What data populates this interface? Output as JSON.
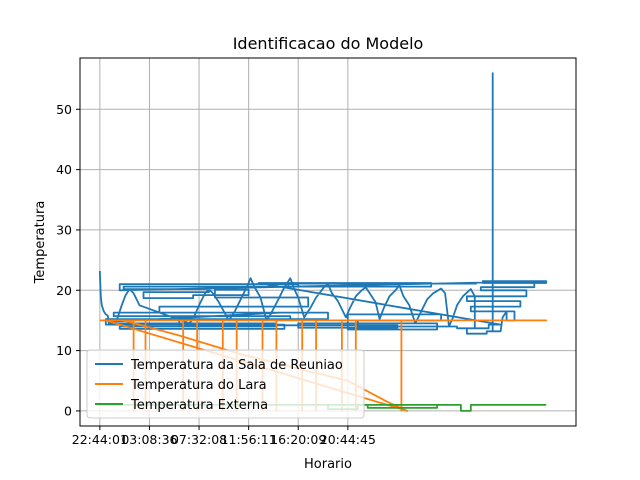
{
  "chart_data": {
    "type": "line",
    "title": "Identificacao do Modelo",
    "xlabel": "Horario",
    "ylabel": "Temperatura",
    "x_ticks": [
      "22:44:01",
      "03:08:36",
      "07:32:08",
      "11:56:11",
      "16:20:09",
      "20:44:45"
    ],
    "y_ticks": [
      0,
      10,
      20,
      30,
      40,
      50
    ],
    "ylim": [
      -2.5,
      58.5
    ],
    "grid": true,
    "legend_position": "lower-left",
    "series": [
      {
        "name": "Temperatura da Sala de Reuniao",
        "color": "#1f77b4",
        "points": [
          [
            0,
            23.2
          ],
          [
            0.05,
            19
          ],
          [
            0.1,
            17.5
          ],
          [
            0.2,
            16.5
          ],
          [
            0.3,
            16
          ],
          [
            0.4,
            15.8
          ],
          [
            0.45,
            14.5
          ],
          [
            8.9,
            14.5
          ],
          [
            8.9,
            14.0
          ],
          [
            1.0,
            14.0
          ],
          [
            1.0,
            13.6
          ],
          [
            9.3,
            13.6
          ],
          [
            9.3,
            14.3
          ],
          [
            0.3,
            14.3
          ],
          [
            0.3,
            15.2
          ],
          [
            9.6,
            15.2
          ],
          [
            9.6,
            15.7
          ],
          [
            0.7,
            15.7
          ],
          [
            0.7,
            16.3
          ],
          [
            9.1,
            16.3
          ],
          [
            0.6,
            14.8
          ],
          [
            0.8,
            14.5
          ],
          [
            0.9,
            15.5
          ],
          [
            1.1,
            17.5
          ],
          [
            1.3,
            19.2
          ],
          [
            1.5,
            20.2
          ],
          [
            1.7,
            19.5
          ],
          [
            1.9,
            18.2
          ],
          [
            2.0,
            17.5
          ],
          [
            4.5,
            14.5
          ],
          [
            4.7,
            15.2
          ],
          [
            5.0,
            17.5
          ],
          [
            5.3,
            19.5
          ],
          [
            5.5,
            20.2
          ],
          [
            5.7,
            19.5
          ],
          [
            6.0,
            18.0
          ],
          [
            6.5,
            15.0
          ],
          [
            6.8,
            16.5
          ],
          [
            7.1,
            18.5
          ],
          [
            7.4,
            20.5
          ],
          [
            7.6,
            22.0
          ],
          [
            7.8,
            20.5
          ],
          [
            8.1,
            18.8
          ],
          [
            8.4,
            15.0
          ],
          [
            8.6,
            16.0
          ],
          [
            9.0,
            18.5
          ],
          [
            9.3,
            20.5
          ],
          [
            9.6,
            22.0
          ],
          [
            9.8,
            20.2
          ],
          [
            10.0,
            18.8
          ],
          [
            10.3,
            15.5
          ],
          [
            10.6,
            17.0
          ],
          [
            10.9,
            18.8
          ],
          [
            11.3,
            20.5
          ],
          [
            11.5,
            21.0
          ],
          [
            11.7,
            19.5
          ],
          [
            12.0,
            18.2
          ],
          [
            12.4,
            15.5
          ],
          [
            12.6,
            17.0
          ],
          [
            12.9,
            19.0
          ],
          [
            13.2,
            20.0
          ],
          [
            13.4,
            20.5
          ],
          [
            13.6,
            19.5
          ],
          [
            13.9,
            18.0
          ],
          [
            14.1,
            15.2
          ],
          [
            14.3,
            17.0
          ],
          [
            14.6,
            19.0
          ],
          [
            14.9,
            20.0
          ],
          [
            15.1,
            20.8
          ],
          [
            15.3,
            19.0
          ],
          [
            15.6,
            17.5
          ],
          [
            15.9,
            14.5
          ],
          [
            16.2,
            16.5
          ],
          [
            16.5,
            18.5
          ],
          [
            16.8,
            19.5
          ],
          [
            17.2,
            20.3
          ],
          [
            17.4,
            19.5
          ],
          [
            17.6,
            14.0
          ],
          [
            17.8,
            15.5
          ],
          [
            18.0,
            17.5
          ],
          [
            18.3,
            19.0
          ],
          [
            18.7,
            20.2
          ],
          [
            18.9,
            19.0
          ],
          [
            18.9,
            13.7
          ],
          [
            18.5,
            13.7
          ],
          [
            18.5,
            12.8
          ],
          [
            19.5,
            12.8
          ],
          [
            19.5,
            13.2
          ],
          [
            19.5,
            13.2
          ],
          [
            19.8,
            13.2
          ],
          [
            19.8,
            56.0
          ],
          [
            19.8,
            13.2
          ],
          [
            20.2,
            13.2
          ],
          [
            20.3,
            15.5
          ],
          [
            20.5,
            16.5
          ],
          [
            20.5,
            15.0
          ],
          [
            20.9,
            15.0
          ],
          [
            20.9,
            16.5
          ],
          [
            18.7,
            16.5
          ],
          [
            18.7,
            17.3
          ],
          [
            21.2,
            17.3
          ],
          [
            21.2,
            18.2
          ],
          [
            18.5,
            18.2
          ],
          [
            18.5,
            19.0
          ],
          [
            21.5,
            19.0
          ],
          [
            21.5,
            20.0
          ],
          [
            19.2,
            20.0
          ],
          [
            19.2,
            20.5
          ],
          [
            21.9,
            20.5
          ],
          [
            21.9,
            21.5
          ],
          [
            19.3,
            21.5
          ],
          [
            19.3,
            21.2
          ],
          [
            22.5,
            21.2
          ],
          [
            22.5,
            21.5
          ],
          [
            19.6,
            21.5
          ],
          [
            19.6,
            21.5
          ],
          [
            22.5,
            21.5
          ],
          [
            1.0,
            20.0
          ],
          [
            1.0,
            21.0
          ],
          [
            10.0,
            21.0
          ],
          [
            10.0,
            20.6
          ],
          [
            1.2,
            20.6
          ],
          [
            1.2,
            20.2
          ],
          [
            5.5,
            20.2
          ],
          [
            5.5,
            19.7
          ],
          [
            2.2,
            19.7
          ],
          [
            2.2,
            18.7
          ],
          [
            4.7,
            18.7
          ],
          [
            4.7,
            19.2
          ],
          [
            7.5,
            19.2
          ],
          [
            7.5,
            20.1
          ],
          [
            5.8,
            20.1
          ],
          [
            5.8,
            18.8
          ],
          [
            10.5,
            18.8
          ],
          [
            10.5,
            17.3
          ],
          [
            3.0,
            17.3
          ],
          [
            3.0,
            16.3
          ],
          [
            11.5,
            16.3
          ],
          [
            11.5,
            15.2
          ],
          [
            4.0,
            15.2
          ],
          [
            4.0,
            14.2
          ],
          [
            15.0,
            14.2
          ],
          [
            15.0,
            13.8
          ],
          [
            10.0,
            13.8
          ],
          [
            10.0,
            14.5
          ],
          [
            17.0,
            14.5
          ],
          [
            17.0,
            13.5
          ],
          [
            12.5,
            13.5
          ],
          [
            12.5,
            16.0
          ],
          [
            17.2,
            16.0
          ],
          [
            17.2,
            15.0
          ],
          [
            13.0,
            15.0
          ],
          [
            13.0,
            14.0
          ],
          [
            18.0,
            14.0
          ],
          [
            18.0,
            13.7
          ],
          [
            19.6,
            13.7
          ],
          [
            19.6,
            14.3
          ],
          [
            20.2,
            14.3
          ],
          [
            8.0,
            21.2
          ],
          [
            16.7,
            21.2
          ],
          [
            16.7,
            20.6
          ],
          [
            9.5,
            20.6
          ],
          [
            9.5,
            21.1
          ],
          [
            19.0,
            21.1
          ]
        ]
      },
      {
        "name": "Temperatura do Lara",
        "color": "#ff7f0e",
        "points": [
          [
            0,
            15.0
          ],
          [
            1.7,
            15.0
          ],
          [
            1.7,
            0
          ],
          [
            1.7,
            15.0
          ],
          [
            2.3,
            15.0
          ],
          [
            2.3,
            0
          ],
          [
            2.3,
            15.0
          ],
          [
            4.2,
            15.0
          ],
          [
            4.2,
            0
          ],
          [
            4.2,
            15.0
          ],
          [
            4.9,
            15.0
          ],
          [
            4.9,
            0
          ],
          [
            4.9,
            15.0
          ],
          [
            6.2,
            15.0
          ],
          [
            6.2,
            0
          ],
          [
            6.2,
            15.0
          ],
          [
            6.9,
            15.0
          ],
          [
            6.9,
            0
          ],
          [
            6.9,
            15.0
          ],
          [
            8.2,
            15.0
          ],
          [
            8.2,
            0
          ],
          [
            8.2,
            15.0
          ],
          [
            8.9,
            15.0
          ],
          [
            8.9,
            0
          ],
          [
            8.9,
            15.0
          ],
          [
            10.2,
            15.0
          ],
          [
            10.2,
            0
          ],
          [
            10.2,
            15.0
          ],
          [
            10.9,
            15.0
          ],
          [
            10.9,
            0
          ],
          [
            10.9,
            15.0
          ],
          [
            12.2,
            15.0
          ],
          [
            12.2,
            0
          ],
          [
            12.2,
            15.0
          ],
          [
            12.9,
            15.0
          ],
          [
            12.9,
            0
          ],
          [
            12.9,
            15.0
          ],
          [
            15.2,
            15.0
          ],
          [
            15.2,
            0
          ],
          [
            15.2,
            15.0
          ],
          [
            22.5,
            15.0
          ],
          [
            1.2,
            15.0
          ],
          [
            4.0,
            12.5
          ],
          [
            7.0,
            9.5
          ],
          [
            10.0,
            7.0
          ],
          [
            12.5,
            5.0
          ],
          [
            14.5,
            1.5
          ],
          [
            15.5,
            0
          ],
          [
            0.3,
            15.0
          ]
        ]
      },
      {
        "name": "Temperatura Externa",
        "color": "#2ca02c",
        "points": [
          [
            0,
            1.0
          ],
          [
            13.0,
            1.0
          ],
          [
            13.0,
            0.3
          ],
          [
            11.5,
            0.3
          ],
          [
            11.5,
            1.0
          ],
          [
            17.0,
            1.0
          ],
          [
            17.0,
            0.5
          ],
          [
            13.5,
            0.5
          ],
          [
            13.5,
            1.0
          ],
          [
            18.2,
            1.0
          ],
          [
            18.2,
            0
          ],
          [
            18.7,
            0
          ],
          [
            18.7,
            1.0
          ],
          [
            22.5,
            1.0
          ]
        ]
      }
    ]
  }
}
